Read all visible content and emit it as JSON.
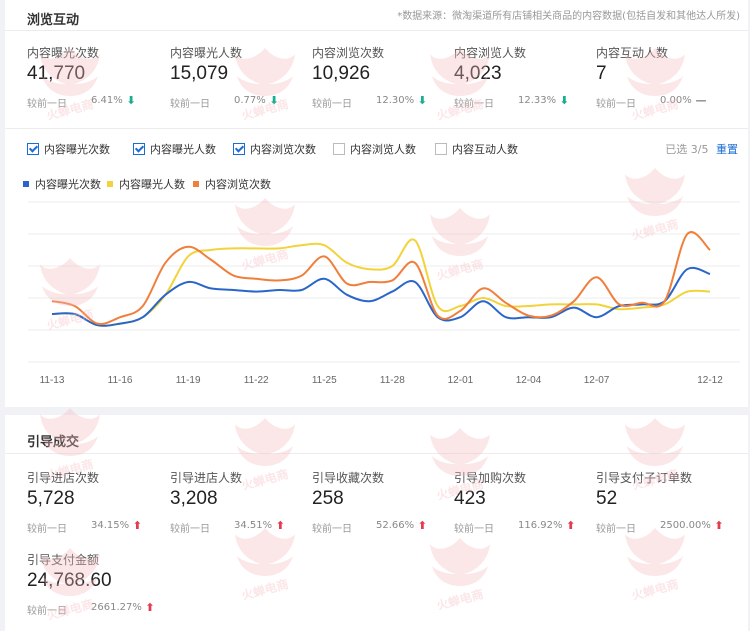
{
  "section1": {
    "title": "浏览互动",
    "note": "*数据来源：微淘渠道所有店铺相关商品的内容数据(包括自发和其他达人所发)",
    "compare_label": "较前一日",
    "metrics": [
      {
        "label": "内容曝光次数",
        "value": "41,770",
        "pct": "6.41%",
        "trend": "down"
      },
      {
        "label": "内容曝光人数",
        "value": "15,079",
        "pct": "0.77%",
        "trend": "down"
      },
      {
        "label": "内容浏览次数",
        "value": "10,926",
        "pct": "12.30%",
        "trend": "down"
      },
      {
        "label": "内容浏览人数",
        "value": "4,023",
        "pct": "12.33%",
        "trend": "down"
      },
      {
        "label": "内容互动人数",
        "value": "7",
        "pct": "0.00%",
        "trend": "flat"
      }
    ],
    "checkboxes": [
      {
        "label": "内容曝光次数",
        "checked": true
      },
      {
        "label": "内容曝光人数",
        "checked": true
      },
      {
        "label": "内容浏览次数",
        "checked": true
      },
      {
        "label": "内容浏览人数",
        "checked": false
      },
      {
        "label": "内容互动人数",
        "checked": false
      }
    ],
    "selected_text": "已选 3/5",
    "reset_label": "重置"
  },
  "section2": {
    "title": "引导成交",
    "compare_label": "较前一日",
    "metrics": [
      {
        "label": "引导进店次数",
        "value": "5,728",
        "pct": "34.15%",
        "trend": "up"
      },
      {
        "label": "引导进店人数",
        "value": "3,208",
        "pct": "34.51%",
        "trend": "up"
      },
      {
        "label": "引导收藏次数",
        "value": "258",
        "pct": "52.66%",
        "trend": "up"
      },
      {
        "label": "引导加购次数",
        "value": "423",
        "pct": "116.92%",
        "trend": "up"
      },
      {
        "label": "引导支付子订单数",
        "value": "52",
        "pct": "2500.00%",
        "trend": "up"
      },
      {
        "label": "引导支付金额",
        "value": "24,768.60",
        "pct": "2661.27%",
        "trend": "up"
      }
    ]
  },
  "icons": {
    "down": "arrow-down-icon",
    "up": "arrow-up-icon",
    "flat": "dash-icon",
    "check": "check-icon"
  },
  "colors": {
    "blue": "#2a66c9",
    "yellow": "#f2d33b",
    "orange": "#ef7f3a",
    "accent": "#1a6dd6",
    "down": "#1aad8f",
    "up": "#e23c4f"
  },
  "watermark_text": "火蝉电商",
  "chart_data": {
    "type": "line",
    "x": [
      "11-13",
      "11-14",
      "11-15",
      "11-16",
      "11-17",
      "11-18",
      "11-19",
      "11-20",
      "11-21",
      "11-22",
      "11-23",
      "11-24",
      "11-25",
      "11-26",
      "11-27",
      "11-28",
      "11-29",
      "11-30",
      "12-01",
      "12-02",
      "12-03",
      "12-04",
      "12-05",
      "12-06",
      "12-07",
      "12-08",
      "12-09",
      "12-10",
      "12-11",
      "12-12"
    ],
    "xtick_labels": [
      "11-13",
      "11-16",
      "11-19",
      "11-22",
      "11-25",
      "11-28",
      "12-01",
      "12-04",
      "12-07",
      "12-12"
    ],
    "grid": true,
    "legend_position": "top-left",
    "series": [
      {
        "name": "内容曝光次数",
        "color": "#2a66c9",
        "values": [
          30,
          30,
          23,
          24,
          28,
          42,
          50,
          46,
          45,
          44,
          45,
          45,
          52,
          42,
          38,
          44,
          50,
          28,
          28,
          38,
          28,
          28,
          28,
          34,
          28,
          35,
          36,
          38,
          58,
          55
        ]
      },
      {
        "name": "内容曝光人数",
        "color": "#f2d33b",
        "values": [
          30,
          30,
          23,
          24,
          28,
          42,
          66,
          70,
          71,
          71,
          71,
          73,
          73,
          62,
          58,
          60,
          76,
          35,
          35,
          40,
          35,
          35,
          36,
          36,
          36,
          33,
          34,
          36,
          44,
          44
        ]
      },
      {
        "name": "内容浏览次数",
        "color": "#ef7f3a",
        "values": [
          38,
          35,
          24,
          28,
          35,
          62,
          72,
          64,
          54,
          52,
          51,
          54,
          66,
          49,
          50,
          51,
          62,
          29,
          32,
          46,
          37,
          29,
          29,
          38,
          53,
          36,
          37,
          38,
          80,
          70
        ]
      }
    ]
  }
}
